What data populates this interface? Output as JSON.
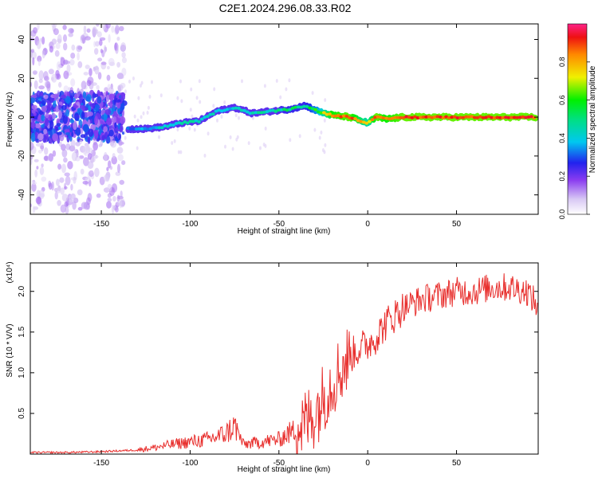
{
  "title": "C2E1.2024.296.08.33.R02",
  "colors": {
    "line": "#e8302e",
    "frame": "#000000",
    "spectrum_low": "#c8b4f0",
    "spectrum_mid": "#3322ee",
    "spectrum_high": "#ee2222"
  },
  "chart_data": [
    {
      "type": "heatmap",
      "title": "C2E1.2024.296.08.33.R02",
      "xlabel": "Height of straight line (km)",
      "ylabel": "Frequency (Hz)",
      "xlim": [
        -190,
        96
      ],
      "ylim": [
        -50,
        48
      ],
      "xticks": [
        -150,
        -100,
        -50,
        0,
        50
      ],
      "yticks": [
        -40,
        -20,
        0,
        20,
        40
      ],
      "colorbar": {
        "label": "Normalized spectral amplitude",
        "range": [
          0.0,
          1.0
        ],
        "ticks": [
          "0.0",
          "0.2",
          "0.4",
          "0.6",
          "0.8"
        ],
        "colormap": "rainbow (white-violet-blue-cyan-green-yellow-red-magenta)"
      },
      "ridge": {
        "x": [
          -135,
          -125,
          -115,
          -105,
          -95,
          -85,
          -75,
          -65,
          -55,
          -45,
          -35,
          -28,
          -20,
          -10,
          0,
          5,
          10,
          20,
          40,
          60,
          80,
          95
        ],
        "frequency": [
          -6,
          -6,
          -5,
          -3,
          -2,
          3,
          5,
          2,
          3,
          4,
          6,
          3,
          1,
          0,
          -3,
          0,
          -1,
          0,
          0,
          0,
          0,
          0
        ],
        "amplitude": [
          0.3,
          0.35,
          0.4,
          0.45,
          0.45,
          0.4,
          0.4,
          0.45,
          0.45,
          0.5,
          0.5,
          0.6,
          0.85,
          0.9,
          0.7,
          0.9,
          0.85,
          0.9,
          0.9,
          0.9,
          0.9,
          0.9
        ]
      },
      "noise_region_x": [
        -190,
        -137
      ]
    },
    {
      "type": "line",
      "xlabel": "Height of straight line (km)",
      "ylabel": "SNR (10 * V/V)",
      "y_multiplier": "(x10⁴)",
      "xlim": [
        -190,
        96
      ],
      "ylim": [
        0,
        2.35
      ],
      "xticks": [
        -150,
        -100,
        -50,
        0,
        50
      ],
      "yticks": [
        "0.5",
        "1.0",
        "1.5",
        "2.0"
      ],
      "series": [
        {
          "x": [
            -190,
            -170,
            -150,
            -140,
            -130,
            -120,
            -110,
            -100,
            -90,
            -80,
            -75,
            -70,
            -60,
            -50,
            -45,
            -40,
            -35,
            -30,
            -25,
            -20,
            -15,
            -10,
            -5,
            0,
            5,
            10,
            15,
            20,
            30,
            40,
            50,
            60,
            70,
            80,
            90,
            96
          ],
          "y": [
            0.02,
            0.02,
            0.03,
            0.04,
            0.05,
            0.08,
            0.12,
            0.15,
            0.18,
            0.25,
            0.35,
            0.12,
            0.15,
            0.18,
            0.25,
            0.3,
            0.38,
            0.5,
            0.7,
            0.9,
            1.05,
            1.2,
            1.3,
            1.35,
            1.45,
            1.6,
            1.7,
            1.8,
            1.9,
            1.95,
            2.0,
            2.0,
            2.05,
            2.05,
            2.0,
            1.8
          ]
        }
      ]
    }
  ]
}
